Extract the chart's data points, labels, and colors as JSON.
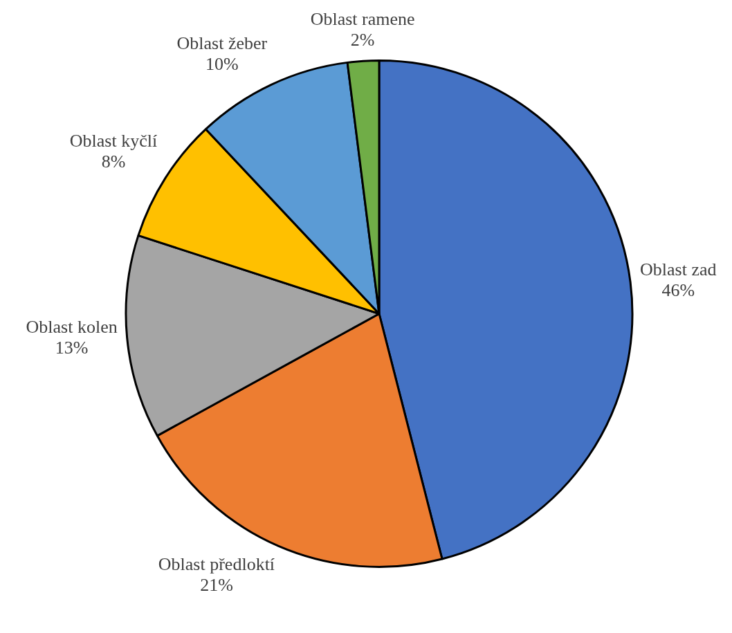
{
  "chart_data": {
    "type": "pie",
    "categories": [
      "Oblast zad",
      "Oblast předloktí",
      "Oblast kolen",
      "Oblast kyčlí",
      "Oblast žeber",
      "Oblast ramene"
    ],
    "values": [
      46,
      21,
      13,
      8,
      10,
      2
    ],
    "colors": [
      "#4472c4",
      "#ed7d31",
      "#a5a5a5",
      "#ffc000",
      "#5b9bd5",
      "#70ad47"
    ],
    "value_labels": [
      "46%",
      "21%",
      "13%",
      "8%",
      "10%",
      "2%"
    ],
    "legend": false
  }
}
